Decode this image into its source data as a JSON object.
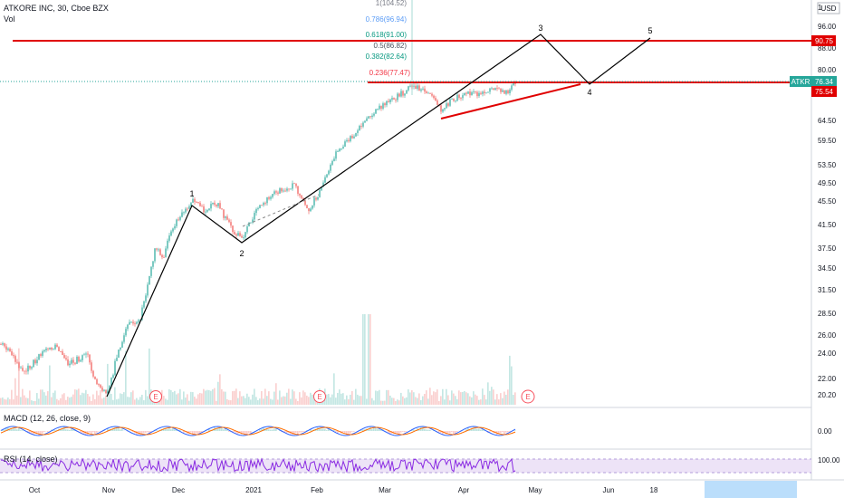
{
  "header": {
    "symbol_line": "ATKORE INC, 30, Cboe BZX",
    "volume_label": "Vol",
    "currency": "USD"
  },
  "axis": {
    "price_ticks": [
      "96.00",
      "88.00",
      "80.00",
      "64.50",
      "59.50",
      "53.50",
      "49.50",
      "45.50",
      "41.50",
      "37.50",
      "34.50",
      "31.50",
      "28.50",
      "26.00",
      "24.00",
      "22.00",
      "20.20"
    ],
    "macd_ticks": [
      "0.00"
    ],
    "rsi_ticks": [
      "100.00"
    ],
    "time_ticks": [
      "Oct",
      "Nov",
      "Dec",
      "2021",
      "Feb",
      "Mar",
      "Apr",
      "May",
      "Jun",
      "18"
    ]
  },
  "price_labels": {
    "atkr_tag": "ATKR",
    "atkr_value": "76.34",
    "upper_level": "90.75",
    "lower_level": "75.54",
    "top_tick": "1"
  },
  "fib_levels": [
    {
      "label": "1(104.52)",
      "color": "#787b86"
    },
    {
      "label": "0.786(96.94)",
      "color": "#5b9cf6"
    },
    {
      "label": "0.618(91.00)",
      "color": "#089981"
    },
    {
      "label": "0.5(86.82)",
      "color": "#4c525e"
    },
    {
      "label": "0.382(82.64)",
      "color": "#089981"
    },
    {
      "label": "0.236(77.47)",
      "color": "#f23645"
    }
  ],
  "waves": [
    "1",
    "2",
    "3",
    "4",
    "5"
  ],
  "earnings_marker": "E",
  "macd": {
    "label": "MACD (12, 26, close, 9)"
  },
  "rsi": {
    "label": "RSI (14, close)"
  },
  "colors": {
    "up": "#26a69a",
    "down": "#ef5350",
    "level_red": "#e00000",
    "atkr_teal": "#26a69a",
    "rsi_line": "#8a2be2",
    "rsi_band": "#e6d5f5",
    "time_highlight": "#bbdefb"
  },
  "chart_data": {
    "type": "candlestick",
    "symbol": "ATKORE INC",
    "interval": "30",
    "exchange": "Cboe BZX",
    "last_price": 76.34,
    "horizontal_levels": [
      90.75,
      75.54
    ],
    "fibonacci_retracement": [
      {
        "ratio": 1,
        "price": 104.52
      },
      {
        "ratio": 0.786,
        "price": 96.94
      },
      {
        "ratio": 0.618,
        "price": 91.0
      },
      {
        "ratio": 0.5,
        "price": 86.82
      },
      {
        "ratio": 0.382,
        "price": 82.64
      },
      {
        "ratio": 0.236,
        "price": 77.47
      }
    ],
    "price_series": {
      "x": [
        "Oct",
        "Nov",
        "Dec",
        "2021",
        "Feb",
        "Mar",
        "Apr"
      ],
      "close": [
        22.0,
        21.5,
        45.0,
        46.0,
        60.0,
        76.0,
        76.34
      ]
    },
    "elliott_wave_points": [
      {
        "label": "1",
        "price": 45.5
      },
      {
        "label": "2",
        "price": 38.5
      },
      {
        "label": "3",
        "price": 96.0
      },
      {
        "label": "4",
        "price": 76.0
      },
      {
        "label": "5",
        "price": 96.0
      }
    ]
  }
}
